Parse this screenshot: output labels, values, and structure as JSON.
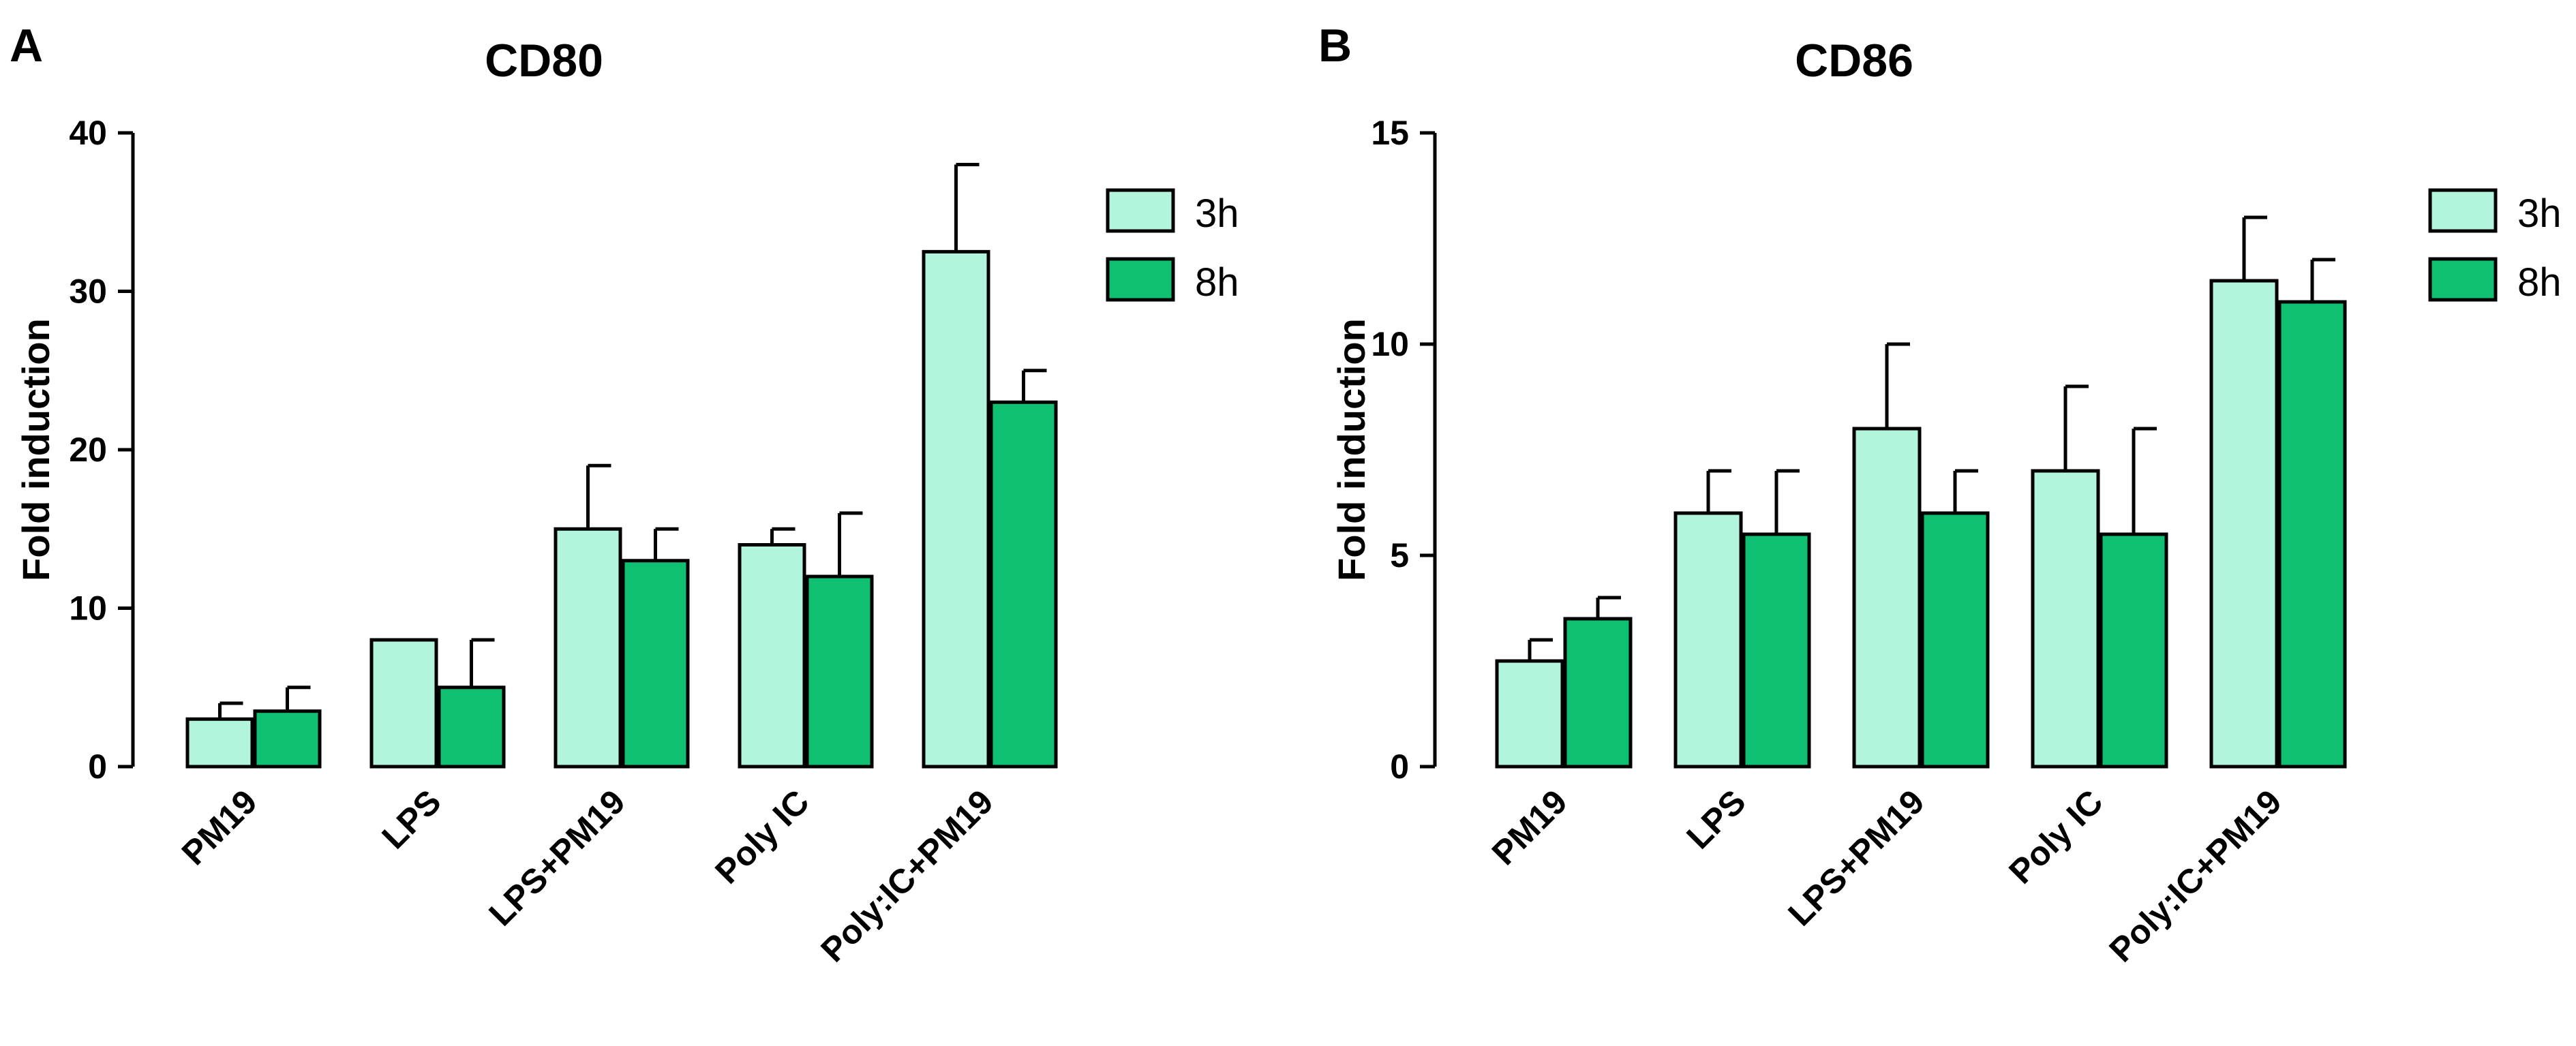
{
  "colors": {
    "3h": "#b3f5dc",
    "8h": "#0fbf72"
  },
  "chart_data": [
    {
      "panel": "A",
      "type": "bar",
      "title": "CD80",
      "xlabel": "",
      "ylabel": "Fold induction",
      "ylim": [
        0,
        40
      ],
      "yticks": [
        "0",
        "10",
        "20",
        "30",
        "40"
      ],
      "categories": [
        "PM19",
        "LPS",
        "LPS+PM19",
        "Poly IC",
        "Poly:IC+PM19"
      ],
      "legend": [
        "3h",
        "8h"
      ],
      "legend_position": "top-right",
      "series": [
        {
          "name": "3h",
          "values": [
            3,
            8,
            15,
            14,
            32.5
          ],
          "errors": [
            1,
            0,
            4,
            1,
            5.5
          ]
        },
        {
          "name": "8h",
          "values": [
            3.5,
            5,
            13,
            12,
            23
          ],
          "errors": [
            1.5,
            3,
            2,
            4,
            2
          ]
        }
      ]
    },
    {
      "panel": "B",
      "type": "bar",
      "title": "CD86",
      "xlabel": "",
      "ylabel": "Fold induction",
      "ylim": [
        0,
        15
      ],
      "yticks": [
        "0",
        "5",
        "10",
        "15"
      ],
      "categories": [
        "PM19",
        "LPS",
        "LPS+PM19",
        "Poly IC",
        "Poly:IC+PM19"
      ],
      "legend": [
        "3h",
        "8h"
      ],
      "legend_position": "top-right",
      "series": [
        {
          "name": "3h",
          "values": [
            2.5,
            6,
            8,
            7,
            11.5
          ],
          "errors": [
            0.5,
            1,
            2,
            2,
            1.5
          ]
        },
        {
          "name": "8h",
          "values": [
            3.5,
            5.5,
            6,
            5.5,
            11
          ],
          "errors": [
            0.5,
            1.5,
            1,
            2.5,
            1
          ]
        }
      ]
    }
  ]
}
